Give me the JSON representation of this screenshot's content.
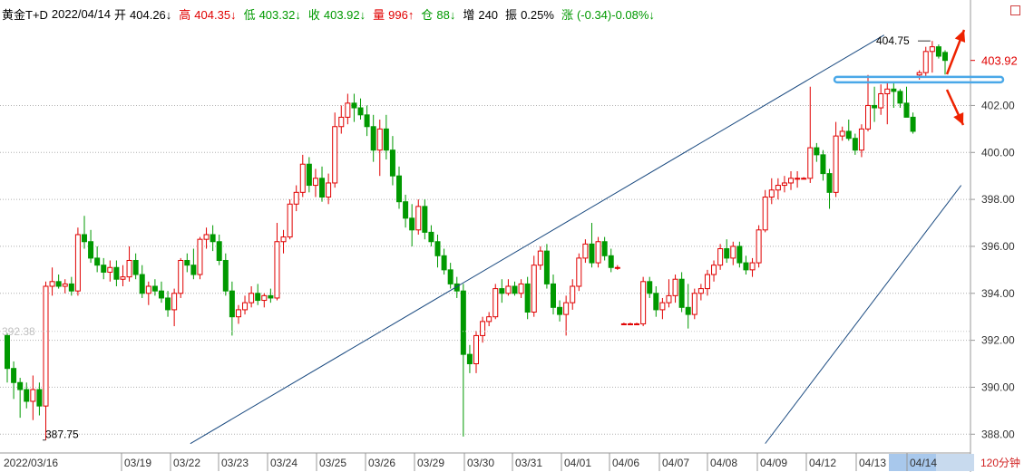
{
  "header": {
    "name": "黄金T+D",
    "date": "2022/04/14",
    "open_label": "开",
    "open": "404.26↓",
    "high_label": "高",
    "high": "404.35↓",
    "low_label": "低",
    "low": "403.32↓",
    "close_label": "收",
    "close": "403.92↓",
    "vol_label": "量",
    "vol": "996↑",
    "oi_label": "仓",
    "oi": "88↓",
    "inc_label": "增",
    "inc": "240",
    "amp_label": "振",
    "amp": "0.25%",
    "chg_label": "涨",
    "chg": "(-0.34)-0.08%↓"
  },
  "period_label": "120分钟",
  "chart_data": {
    "type": "candlestick",
    "yticks": [
      "388.00",
      "390.00",
      "392.00",
      "394.00",
      "396.00",
      "398.00",
      "400.00",
      "402.00"
    ],
    "ylim": [
      387.2,
      406.3
    ],
    "current_price": "403.92",
    "marker_high": "404.75",
    "marker_low": "387.75",
    "crosshair_value": "392.38",
    "x_labels": [
      "2022/03/16",
      "03/19",
      "03/22",
      "03/23",
      "03/24",
      "03/25",
      "03/26",
      "03/29",
      "03/30",
      "03/31",
      "04/01",
      "04/06",
      "04/07",
      "04/08",
      "04/09",
      "04/12",
      "04/13",
      "04/14"
    ],
    "colors": {
      "up": "#e00000",
      "down": "#009900",
      "trend": "#1a4a80",
      "support": "#4aa8e8",
      "arrow": "#ee2200"
    },
    "candles": [
      [
        392.2,
        392.3,
        390.2,
        390.8
      ],
      [
        390.8,
        391.1,
        389.5,
        390.2
      ],
      [
        390.2,
        390.4,
        388.7,
        389.9
      ],
      [
        389.9,
        390.2,
        389.1,
        389.4
      ],
      [
        389.4,
        390.5,
        388.6,
        389.9
      ],
      [
        389.9,
        390.2,
        388.8,
        389.2
      ],
      [
        389.2,
        394.5,
        387.75,
        394.3
      ],
      [
        394.3,
        395.1,
        393.9,
        394.5
      ],
      [
        394.5,
        394.8,
        394.2,
        394.3
      ],
      [
        394.3,
        394.6,
        394.0,
        394.4
      ],
      [
        394.4,
        394.7,
        393.9,
        394.1
      ],
      [
        394.1,
        396.8,
        393.9,
        396.5
      ],
      [
        396.5,
        397.3,
        395.9,
        396.2
      ],
      [
        396.2,
        396.7,
        395.3,
        395.5
      ],
      [
        395.5,
        396.0,
        394.9,
        395.2
      ],
      [
        395.2,
        395.5,
        394.6,
        394.9
      ],
      [
        394.9,
        395.4,
        394.5,
        395.1
      ],
      [
        395.1,
        395.4,
        394.3,
        394.6
      ],
      [
        394.6,
        395.2,
        394.3,
        394.7
      ],
      [
        394.7,
        396.0,
        394.5,
        395.4
      ],
      [
        395.4,
        395.7,
        394.6,
        394.8
      ],
      [
        394.8,
        395.2,
        393.8,
        394.0
      ],
      [
        394.0,
        394.5,
        393.5,
        394.3
      ],
      [
        394.3,
        394.6,
        393.9,
        394.1
      ],
      [
        394.1,
        394.5,
        393.6,
        393.8
      ],
      [
        393.8,
        394.1,
        393.0,
        393.3
      ],
      [
        393.3,
        394.2,
        392.6,
        394.0
      ],
      [
        394.0,
        395.5,
        393.8,
        395.4
      ],
      [
        395.4,
        395.7,
        394.9,
        395.2
      ],
      [
        395.2,
        395.9,
        394.6,
        394.8
      ],
      [
        394.8,
        396.4,
        394.6,
        396.3
      ],
      [
        396.3,
        396.8,
        395.9,
        396.5
      ],
      [
        396.5,
        396.9,
        395.8,
        396.2
      ],
      [
        396.2,
        396.5,
        395.2,
        395.4
      ],
      [
        395.4,
        395.7,
        393.9,
        394.1
      ],
      [
        394.1,
        394.5,
        392.2,
        393.0
      ],
      [
        393.0,
        393.5,
        392.7,
        393.3
      ],
      [
        393.3,
        393.9,
        393.1,
        393.6
      ],
      [
        393.6,
        394.3,
        393.4,
        394.0
      ],
      [
        394.0,
        394.4,
        393.5,
        393.7
      ],
      [
        393.7,
        394.0,
        393.4,
        393.9
      ],
      [
        393.9,
        394.2,
        393.6,
        393.8
      ],
      [
        393.8,
        397.0,
        393.7,
        396.2
      ],
      [
        396.2,
        396.7,
        395.7,
        396.4
      ],
      [
        396.4,
        398.0,
        396.3,
        397.8
      ],
      [
        397.8,
        398.6,
        397.5,
        398.3
      ],
      [
        398.3,
        399.9,
        398.1,
        399.5
      ],
      [
        399.5,
        399.8,
        398.3,
        398.6
      ],
      [
        398.6,
        399.3,
        398.1,
        398.9
      ],
      [
        398.9,
        399.4,
        397.9,
        398.1
      ],
      [
        398.1,
        399.1,
        397.8,
        398.7
      ],
      [
        398.7,
        401.7,
        398.5,
        401.1
      ],
      [
        401.1,
        402.0,
        400.8,
        401.5
      ],
      [
        401.5,
        402.5,
        401.2,
        402.1
      ],
      [
        402.1,
        402.5,
        401.3,
        401.9
      ],
      [
        401.9,
        402.3,
        401.4,
        401.6
      ],
      [
        401.6,
        402.0,
        400.7,
        401.1
      ],
      [
        401.1,
        401.6,
        399.6,
        400.1
      ],
      [
        400.1,
        401.4,
        399.0,
        401.0
      ],
      [
        401.0,
        401.6,
        399.7,
        400.1
      ],
      [
        400.1,
        400.7,
        398.6,
        399.0
      ],
      [
        399.0,
        399.4,
        397.6,
        397.9
      ],
      [
        397.9,
        398.2,
        396.8,
        397.2
      ],
      [
        397.2,
        397.8,
        396.0,
        396.7
      ],
      [
        396.7,
        398.0,
        396.5,
        397.7
      ],
      [
        397.7,
        398.0,
        396.3,
        396.6
      ],
      [
        396.6,
        396.9,
        396.0,
        396.2
      ],
      [
        396.2,
        396.5,
        395.1,
        395.6
      ],
      [
        395.6,
        395.9,
        394.8,
        395.0
      ],
      [
        395.0,
        395.3,
        394.2,
        394.4
      ],
      [
        394.4,
        394.7,
        393.8,
        394.1
      ],
      [
        394.1,
        394.4,
        387.9,
        391.4
      ],
      [
        391.4,
        391.8,
        390.6,
        391.0
      ],
      [
        391.0,
        392.4,
        390.6,
        392.2
      ],
      [
        392.2,
        393.0,
        391.9,
        392.8
      ],
      [
        392.8,
        393.2,
        392.6,
        393.0
      ],
      [
        393.0,
        394.4,
        392.9,
        394.2
      ],
      [
        394.2,
        394.6,
        393.6,
        394.0
      ],
      [
        394.0,
        394.6,
        393.9,
        394.3
      ],
      [
        394.3,
        394.5,
        393.9,
        394.0
      ],
      [
        394.0,
        394.6,
        393.8,
        394.4
      ],
      [
        394.4,
        394.7,
        392.9,
        393.2
      ],
      [
        393.2,
        395.6,
        393.0,
        395.2
      ],
      [
        395.2,
        396.0,
        395.0,
        395.8
      ],
      [
        395.8,
        396.1,
        394.2,
        394.4
      ],
      [
        394.4,
        394.8,
        393.1,
        393.4
      ],
      [
        393.4,
        393.7,
        392.8,
        393.1
      ],
      [
        393.1,
        393.9,
        392.2,
        393.6
      ],
      [
        393.6,
        394.6,
        393.3,
        394.3
      ],
      [
        394.3,
        395.7,
        394.1,
        395.5
      ],
      [
        395.5,
        396.3,
        395.3,
        396.1
      ],
      [
        396.1,
        397.0,
        395.1,
        395.3
      ],
      [
        395.3,
        396.4,
        395.1,
        396.2
      ],
      [
        396.2,
        396.4,
        395.4,
        395.6
      ],
      [
        395.6,
        395.9,
        394.9,
        395.1
      ],
      [
        395.1,
        395.2,
        395.0,
        395.1
      ]
    ],
    "late_candles": [
      [
        392.7,
        392.75,
        392.65,
        392.7
      ],
      [
        392.7,
        392.75,
        392.65,
        392.7
      ],
      [
        392.7,
        392.75,
        392.65,
        392.7
      ],
      [
        392.7,
        394.7,
        392.6,
        394.5
      ],
      [
        394.5,
        394.7,
        393.8,
        394.0
      ],
      [
        394.0,
        394.3,
        393.0,
        393.3
      ],
      [
        393.3,
        393.8,
        392.9,
        393.6
      ],
      [
        393.6,
        394.6,
        393.4,
        393.9
      ],
      [
        393.9,
        394.8,
        393.6,
        394.6
      ],
      [
        394.6,
        394.9,
        393.2,
        393.4
      ],
      [
        393.4,
        394.4,
        392.5,
        393.1
      ],
      [
        393.1,
        394.2,
        392.9,
        394.0
      ],
      [
        394.0,
        394.4,
        393.7,
        394.2
      ],
      [
        394.2,
        395.0,
        393.9,
        394.8
      ],
      [
        394.8,
        395.4,
        394.5,
        395.2
      ],
      [
        395.2,
        396.1,
        395.0,
        395.9
      ],
      [
        395.9,
        396.3,
        395.3,
        395.5
      ],
      [
        395.5,
        396.2,
        395.2,
        396.0
      ],
      [
        396.0,
        396.2,
        395.1,
        395.3
      ],
      [
        395.3,
        395.6,
        394.8,
        395.0
      ],
      [
        395.0,
        395.5,
        394.7,
        395.3
      ],
      [
        395.3,
        396.9,
        395.1,
        396.7
      ],
      [
        396.7,
        398.4,
        396.6,
        398.1
      ],
      [
        398.1,
        398.9,
        397.8,
        398.4
      ],
      [
        398.4,
        398.9,
        398.0,
        398.6
      ],
      [
        398.6,
        399.0,
        398.3,
        398.7
      ],
      [
        398.7,
        399.2,
        398.4,
        398.9
      ],
      [
        398.9,
        399.2,
        398.5,
        398.9
      ],
      [
        398.9,
        398.95,
        398.85,
        398.9
      ],
      [
        398.9,
        402.8,
        398.7,
        400.2
      ],
      [
        400.2,
        400.4,
        399.6,
        399.9
      ],
      [
        399.9,
        400.1,
        398.8,
        399.1
      ],
      [
        399.1,
        399.3,
        397.6,
        398.3
      ],
      [
        398.3,
        401.3,
        398.1,
        400.7
      ],
      [
        400.7,
        401.1,
        400.5,
        400.9
      ],
      [
        400.9,
        401.4,
        400.5,
        400.6
      ],
      [
        400.6,
        400.8,
        399.9,
        400.1
      ],
      [
        400.1,
        401.2,
        399.8,
        401.0
      ],
      [
        401.0,
        403.3,
        400.9,
        402.0
      ],
      [
        402.0,
        402.8,
        401.3,
        401.9
      ],
      [
        401.9,
        402.9,
        401.6,
        402.5
      ],
      [
        402.5,
        403.0,
        401.2,
        402.7
      ],
      [
        402.7,
        403.0,
        401.9,
        402.6
      ],
      [
        402.6,
        402.7,
        401.9,
        402.1
      ],
      [
        402.1,
        402.8,
        401.6,
        401.5
      ],
      [
        401.5,
        401.7,
        400.8,
        400.9
      ],
      [
        403.3,
        403.5,
        403.1,
        403.4
      ],
      [
        403.4,
        404.5,
        403.2,
        404.3
      ],
      [
        404.3,
        404.75,
        403.4,
        404.5
      ],
      [
        404.5,
        404.6,
        404.0,
        404.1
      ],
      [
        404.26,
        404.35,
        403.32,
        403.92
      ]
    ]
  }
}
